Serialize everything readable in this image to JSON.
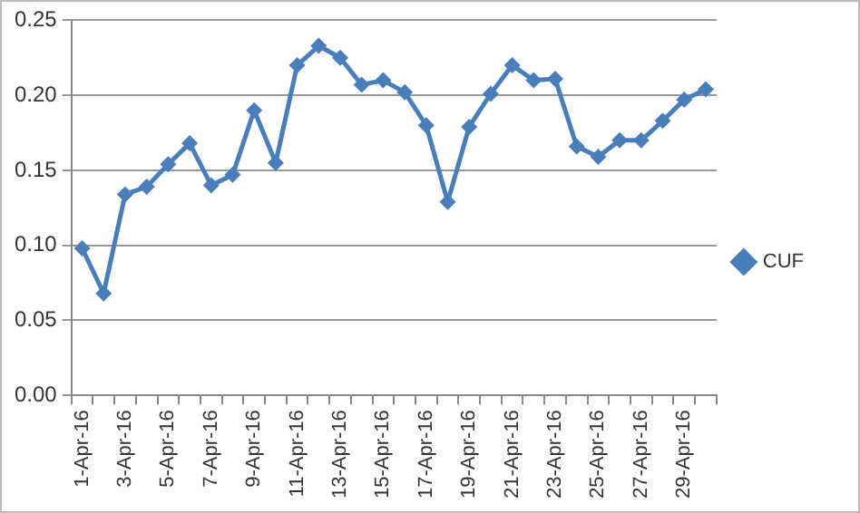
{
  "chart_data": {
    "type": "line",
    "categories": [
      "1-Apr-16",
      null,
      "3-Apr-16",
      null,
      "5-Apr-16",
      null,
      "7-Apr-16",
      null,
      "9-Apr-16",
      null,
      "11-Apr-16",
      null,
      "13-Apr-16",
      null,
      "15-Apr-16",
      null,
      "17-Apr-16",
      null,
      "19-Apr-16",
      null,
      "21-Apr-16",
      null,
      "23-Apr-16",
      null,
      "25-Apr-16",
      null,
      "27-Apr-16",
      null,
      "29-Apr-16",
      null
    ],
    "series": [
      {
        "name": "CUF",
        "color": "#4a7ebb",
        "values": [
          0.098,
          0.068,
          0.134,
          0.139,
          0.154,
          0.168,
          0.14,
          0.147,
          0.19,
          0.155,
          0.22,
          0.233,
          0.225,
          0.207,
          0.21,
          0.202,
          0.18,
          0.129,
          0.179,
          0.201,
          0.22,
          0.21,
          0.211,
          0.166,
          0.159,
          0.17,
          0.17,
          0.183,
          0.197,
          0.204
        ]
      }
    ],
    "ylim": [
      0,
      0.25
    ],
    "yticks": [
      {
        "value": 0,
        "label": "0.00"
      },
      {
        "value": 0.05,
        "label": "0.05"
      },
      {
        "value": 0.1,
        "label": "0.10"
      },
      {
        "value": 0.15,
        "label": "0.15"
      },
      {
        "value": 0.2,
        "label": "0.20"
      },
      {
        "value": 0.25,
        "label": "0.25"
      }
    ],
    "grid": "y",
    "legend": "right",
    "marker": "diamond",
    "line_style": "solid"
  }
}
